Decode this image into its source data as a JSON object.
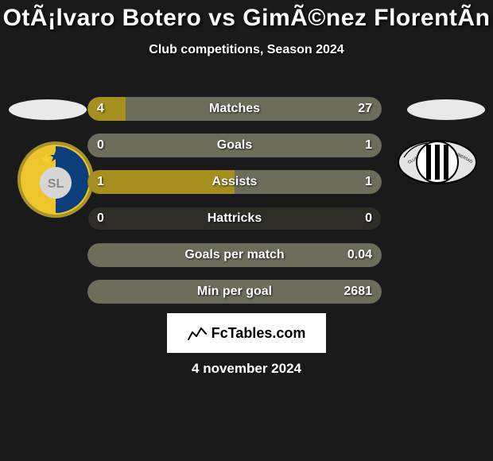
{
  "title": "OtÃ¡lvaro Botero vs GimÃ©nez FlorentÃ­n",
  "subtitle": "Club competitions, Season 2024",
  "date": "4 november 2024",
  "logo": {
    "text": "FcTables.com"
  },
  "colors": {
    "left_fill": "#a68f1f",
    "right_fill": "#6d6d5c",
    "track": "#2e2e26"
  },
  "bars": [
    {
      "label": "Matches",
      "left_val": "4",
      "right_val": "27",
      "left_pct": 13,
      "right_pct": 87
    },
    {
      "label": "Goals",
      "left_val": "0",
      "right_val": "1",
      "left_pct": 0,
      "right_pct": 100
    },
    {
      "label": "Assists",
      "left_val": "1",
      "right_val": "1",
      "left_pct": 50,
      "right_pct": 50
    },
    {
      "label": "Hattricks",
      "left_val": "0",
      "right_val": "0",
      "left_pct": 0,
      "right_pct": 0
    },
    {
      "label": "Goals per match",
      "left_val": "",
      "right_val": "0.04",
      "left_pct": 0,
      "right_pct": 100
    },
    {
      "label": "Min per goal",
      "left_val": "",
      "right_val": "2681",
      "left_pct": 0,
      "right_pct": 100
    }
  ],
  "club_left": {
    "ring_outer": "#a8942a",
    "ring_inner": "#eec52c",
    "field_blue": "#0b3e7a",
    "monogram_bg": "#d6d6d6",
    "star": "#f2d233"
  },
  "club_right": {
    "bg": "#e4e4e4",
    "stripe": "#000000"
  }
}
